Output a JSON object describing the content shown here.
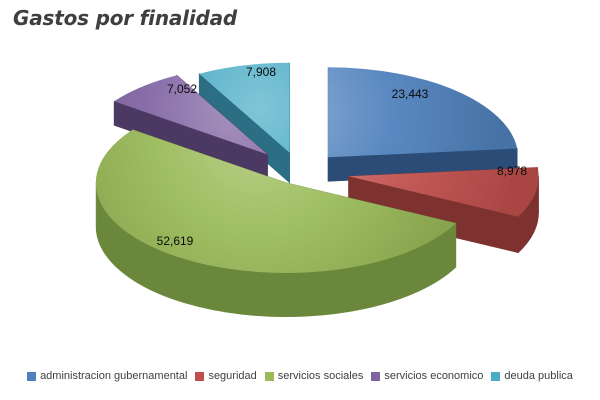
{
  "title": "Gastos por finalidad",
  "chart_data": {
    "type": "pie",
    "style": "3d-exploded",
    "title": "Gastos por finalidad",
    "legend_position": "bottom",
    "grid": false,
    "total": 100000,
    "slices": [
      {
        "label": "administracion gubernamental",
        "value": 23443,
        "display": "23,443",
        "color": "#4F81BD",
        "side_color": "#2B4C77"
      },
      {
        "label": "seguridad",
        "value": 8978,
        "display": "8,978",
        "color": "#C0504D",
        "side_color": "#7E3230"
      },
      {
        "label": "servicios sociales",
        "value": 52619,
        "display": "52,619",
        "color": "#9BBB59",
        "side_color": "#6B873B"
      },
      {
        "label": "servicios economico",
        "value": 7052,
        "display": "7,052",
        "color": "#8064A2",
        "side_color": "#4C3963"
      },
      {
        "label": "deuda publica",
        "value": 7908,
        "display": "7,908",
        "color": "#4BACC6",
        "side_color": "#2C6F85"
      }
    ]
  }
}
